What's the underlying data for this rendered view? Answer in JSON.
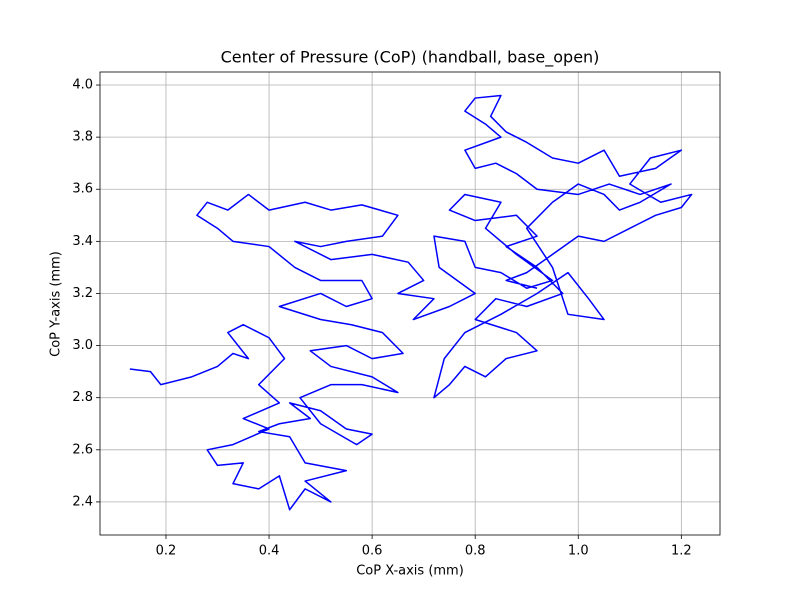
{
  "chart_data": {
    "type": "line",
    "title": "Center of Pressure (CoP) (handball, base_open)",
    "xlabel": "CoP X-axis (mm)",
    "ylabel": "CoP Y-axis (mm)",
    "color": "#0000ff",
    "grid": true,
    "xlim": [
      0.072,
      1.275
    ],
    "ylim": [
      2.273,
      4.05
    ],
    "xticks": [
      0.2,
      0.4,
      0.6,
      0.8,
      {
        "value": 1.0,
        "label": "1.0"
      },
      1.2
    ],
    "yticks": [
      2.4,
      2.6,
      2.8,
      {
        "value": 3.0,
        "label": "3.0"
      },
      3.2,
      3.4,
      3.6,
      3.8,
      {
        "value": 4.0,
        "label": "4.0"
      }
    ],
    "x": [
      0.13,
      0.17,
      0.19,
      0.25,
      0.3,
      0.33,
      0.36,
      0.32,
      0.35,
      0.4,
      0.43,
      0.38,
      0.42,
      0.35,
      0.4,
      0.33,
      0.28,
      0.3,
      0.35,
      0.33,
      0.38,
      0.42,
      0.44,
      0.47,
      0.52,
      0.47,
      0.55,
      0.47,
      0.44,
      0.38,
      0.42,
      0.48,
      0.44,
      0.5,
      0.55,
      0.6,
      0.57,
      0.5,
      0.46,
      0.52,
      0.58,
      0.65,
      0.6,
      0.52,
      0.48,
      0.55,
      0.6,
      0.66,
      0.62,
      0.56,
      0.5,
      0.42,
      0.5,
      0.55,
      0.6,
      0.58,
      0.5,
      0.45,
      0.4,
      0.33,
      0.3,
      0.26,
      0.28,
      0.32,
      0.36,
      0.4,
      0.47,
      0.52,
      0.58,
      0.65,
      0.62,
      0.55,
      0.5,
      0.45,
      0.52,
      0.6,
      0.67,
      0.7,
      0.65,
      0.72,
      0.68,
      0.75,
      0.8,
      0.73,
      0.72,
      0.78,
      0.8,
      0.85,
      0.9,
      0.95,
      0.88,
      0.82,
      0.85,
      0.78,
      0.75,
      0.8,
      0.88,
      0.92,
      0.86,
      0.92,
      0.97,
      0.9,
      0.84,
      0.8,
      0.88,
      0.92,
      0.86,
      0.82,
      0.78,
      0.75,
      0.72,
      0.74,
      0.78,
      0.85,
      0.92,
      0.98,
      1.02,
      1.05,
      0.98,
      0.95,
      0.9,
      0.95,
      1.0,
      1.05,
      1.08,
      1.12,
      1.18,
      1.12,
      1.06,
      1.0,
      0.92,
      0.88,
      0.84,
      0.8,
      0.78,
      0.85,
      0.82,
      0.78,
      0.8,
      0.85,
      0.83,
      0.86,
      0.9,
      0.95,
      1.0,
      1.05,
      1.08,
      1.15,
      1.2,
      1.14,
      1.1,
      1.16,
      1.22,
      1.2,
      1.15,
      1.1,
      1.05,
      1.0,
      0.95,
      0.9,
      0.86,
      0.92
    ],
    "values": [
      2.91,
      2.9,
      2.85,
      2.88,
      2.92,
      2.97,
      2.95,
      3.05,
      3.08,
      3.03,
      2.95,
      2.85,
      2.78,
      2.72,
      2.68,
      2.62,
      2.6,
      2.54,
      2.55,
      2.47,
      2.45,
      2.5,
      2.37,
      2.45,
      2.4,
      2.48,
      2.52,
      2.55,
      2.65,
      2.67,
      2.7,
      2.72,
      2.78,
      2.75,
      2.68,
      2.66,
      2.62,
      2.7,
      2.8,
      2.85,
      2.85,
      2.82,
      2.88,
      2.92,
      2.98,
      3.0,
      2.95,
      2.97,
      3.05,
      3.08,
      3.1,
      3.15,
      3.2,
      3.15,
      3.18,
      3.25,
      3.25,
      3.3,
      3.38,
      3.4,
      3.45,
      3.5,
      3.55,
      3.52,
      3.58,
      3.52,
      3.55,
      3.52,
      3.54,
      3.5,
      3.42,
      3.4,
      3.38,
      3.4,
      3.33,
      3.35,
      3.32,
      3.25,
      3.2,
      3.18,
      3.1,
      3.15,
      3.2,
      3.3,
      3.42,
      3.4,
      3.3,
      3.28,
      3.22,
      3.25,
      3.35,
      3.45,
      3.55,
      3.58,
      3.52,
      3.48,
      3.5,
      3.42,
      3.38,
      3.3,
      3.2,
      3.15,
      3.18,
      3.1,
      3.05,
      2.98,
      2.95,
      2.88,
      2.92,
      2.85,
      2.8,
      2.95,
      3.05,
      3.12,
      3.2,
      3.28,
      3.18,
      3.1,
      3.12,
      3.3,
      3.45,
      3.55,
      3.62,
      3.58,
      3.52,
      3.55,
      3.62,
      3.58,
      3.62,
      3.58,
      3.6,
      3.66,
      3.7,
      3.68,
      3.75,
      3.8,
      3.85,
      3.9,
      3.95,
      3.96,
      3.88,
      3.82,
      3.78,
      3.72,
      3.7,
      3.75,
      3.65,
      3.68,
      3.75,
      3.72,
      3.62,
      3.55,
      3.58,
      3.53,
      3.5,
      3.45,
      3.4,
      3.42,
      3.35,
      3.28,
      3.25,
      3.22
    ]
  }
}
